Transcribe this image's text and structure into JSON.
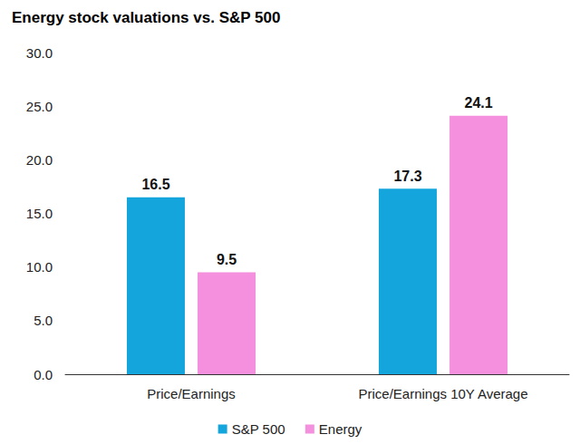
{
  "chart_data": {
    "type": "bar",
    "title": "Energy stock valuations vs. S&P 500",
    "categories": [
      "Price/Earnings",
      "Price/Earnings 10Y Average"
    ],
    "series": [
      {
        "name": "S&P 500",
        "color": "#13a5dc",
        "values": [
          16.5,
          17.3
        ]
      },
      {
        "name": "Energy",
        "color": "#f490de",
        "values": [
          9.5,
          24.1
        ]
      }
    ],
    "ylim": [
      0,
      30
    ],
    "yticks": [
      {
        "value": 0,
        "label": "0.0"
      },
      {
        "value": 5,
        "label": "5.0"
      },
      {
        "value": 10,
        "label": "10.0"
      },
      {
        "value": 15,
        "label": "15.0"
      },
      {
        "value": 20,
        "label": "20.0"
      },
      {
        "value": 25,
        "label": "25.0"
      },
      {
        "value": 30,
        "label": "30.0"
      }
    ],
    "grid": false,
    "legend": "bottom",
    "data_labels": true
  }
}
